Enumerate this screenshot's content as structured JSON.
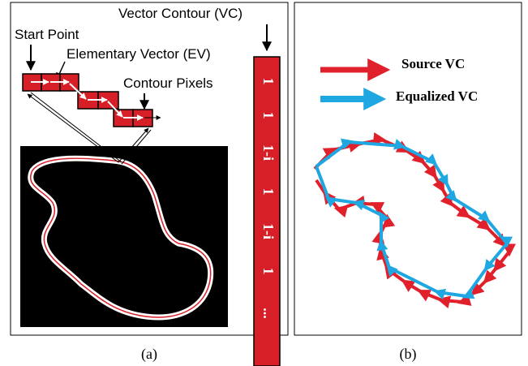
{
  "panel_a": {
    "vc_label": "Vector Contour (VC)",
    "start_point": "Start Point",
    "ev_label": "Elementary Vector (EV)",
    "contour_pixels": "Contour Pixels",
    "vc_codes": [
      "1",
      "1",
      "1-i",
      "1",
      "1-i",
      "1",
      "..."
    ],
    "caption": "(a)"
  },
  "panel_b": {
    "legend": [
      "Source VC",
      "Equalized VC"
    ],
    "caption": "(b)"
  }
}
